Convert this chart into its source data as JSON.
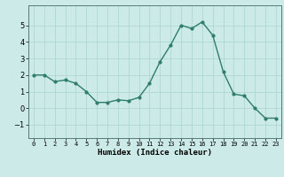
{
  "x": [
    0,
    1,
    2,
    3,
    4,
    5,
    6,
    7,
    8,
    9,
    10,
    11,
    12,
    13,
    14,
    15,
    16,
    17,
    18,
    19,
    20,
    21,
    22,
    23
  ],
  "y": [
    2.0,
    2.0,
    1.6,
    1.7,
    1.5,
    1.0,
    0.35,
    0.35,
    0.5,
    0.45,
    0.65,
    1.5,
    2.8,
    3.8,
    5.0,
    4.8,
    5.2,
    4.4,
    2.2,
    0.85,
    0.75,
    0.0,
    -0.6,
    -0.6
  ],
  "line_color": "#2e7d6e",
  "marker": "o",
  "marker_size": 2.0,
  "linewidth": 1.0,
  "xlabel": "Humidex (Indice chaleur)",
  "xlim": [
    -0.5,
    23.5
  ],
  "ylim": [
    -1.8,
    6.2
  ],
  "yticks": [
    -1,
    0,
    1,
    2,
    3,
    4,
    5
  ],
  "xtick_labels": [
    "0",
    "1",
    "2",
    "3",
    "4",
    "5",
    "6",
    "7",
    "8",
    "9",
    "10",
    "11",
    "12",
    "13",
    "14",
    "15",
    "16",
    "17",
    "18",
    "19",
    "20",
    "21",
    "22",
    "23"
  ],
  "bg_color": "#cceae7",
  "grid_color": "#aad4d0",
  "xlabel_fontsize": 6.5,
  "xlabel_fontweight": "bold",
  "ytick_fontsize": 6.0,
  "xtick_fontsize": 5.0
}
